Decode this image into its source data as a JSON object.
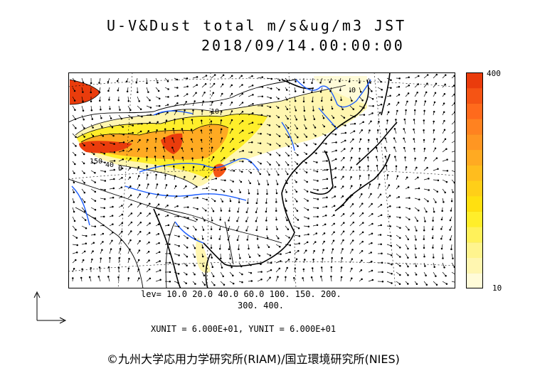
{
  "title": {
    "line1": "U-V&Dust total m/s&ug/m3 JST",
    "line2": "2018/09/14.00:00:00"
  },
  "legend": {
    "max_label": "400",
    "min_label": "10",
    "colors": [
      "#fffbd8",
      "#fff6b0",
      "#fff48e",
      "#fff15a",
      "#ffee2a",
      "#ffe010",
      "#ffcf18",
      "#ffbd1e",
      "#ffaa22",
      "#ff9622",
      "#ff8220",
      "#ff6a1c",
      "#f55414",
      "#ea3c0c"
    ]
  },
  "levels": {
    "line1": "lev= 10.0 20.0 40.0 60.0 100. 150. 200.",
    "line2": "300. 400."
  },
  "units": "XUNIT = 6.000E+01, YUNIT = 6.000E+01",
  "copyright": "©九州大学応用力学研究所(RIAM)/国立環境研究所(NIES)",
  "contour_labels": [
    "150",
    "40",
    "0",
    "10",
    "0"
  ],
  "colors": {
    "coast": "#000000",
    "river": "#1a5cff",
    "frame": "#000000"
  }
}
